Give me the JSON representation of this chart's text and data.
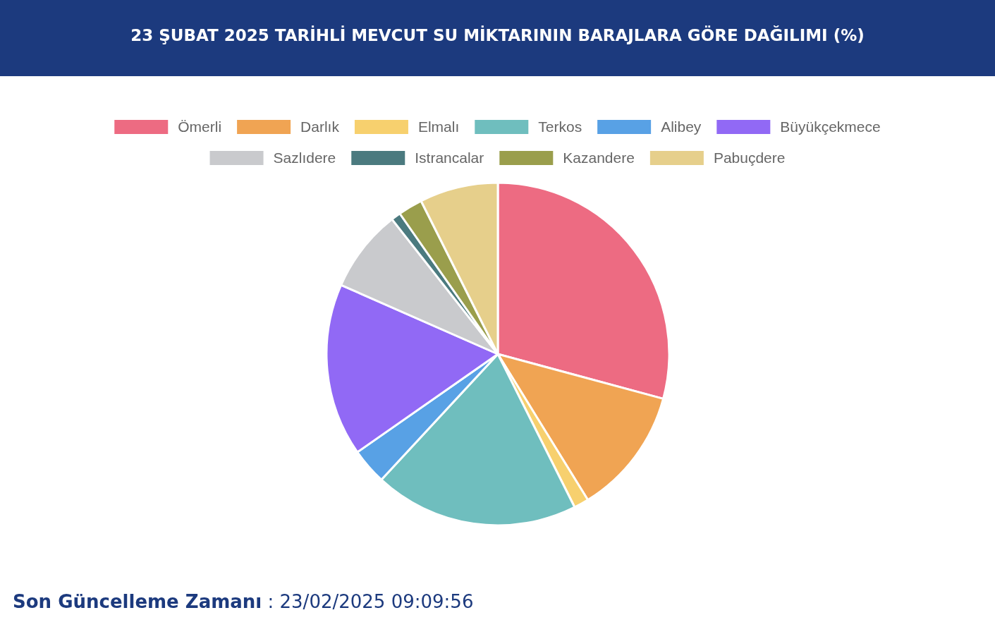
{
  "chart_data": {
    "type": "pie",
    "title": "23 ŞUBAT 2025 TARİHLİ MEVCUT SU MİKTARININ BARAJLARA GÖRE DAĞILIMI (%)",
    "categories": [
      "Ömerli",
      "Darlık",
      "Elmalı",
      "Terkos",
      "Alibey",
      "Büyükçekmece",
      "Sazlıdere",
      "Istrancalar",
      "Kazandere",
      "Pabuçdere"
    ],
    "values": [
      29.2,
      12.0,
      1.4,
      19.3,
      3.4,
      16.3,
      7.8,
      0.9,
      2.3,
      7.4
    ],
    "colors": [
      "#ed6b82",
      "#f0a453",
      "#f7d06e",
      "#6fbebe",
      "#58a1e5",
      "#9169f5",
      "#c9cacd",
      "#4b7a7f",
      "#9a9e4c",
      "#e6cf8b"
    ],
    "legend": "top",
    "annotations": [
      "Son Güncelleme Zamanı : 23/02/2025 09:09:56"
    ]
  }
}
